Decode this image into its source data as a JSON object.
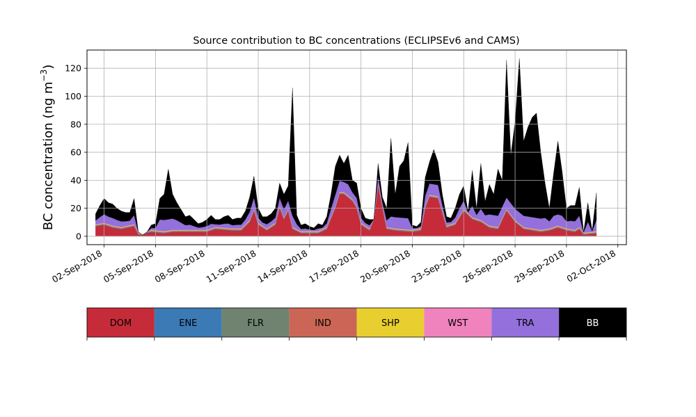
{
  "chart_data": {
    "type": "area",
    "stacked": true,
    "title": "Source contribution to BC concentrations (ECLIPSEv6 and CAMS)",
    "ylabel_main": "BC concentration (ng m",
    "ylabel_sup": "−3",
    "ylabel_close": ")",
    "xlabel": "",
    "ylim": [
      -6,
      133
    ],
    "yticks": [
      0,
      20,
      40,
      60,
      80,
      100,
      120
    ],
    "xlim": [
      "2018-09-01T00:00",
      "2018-10-02T12:00"
    ],
    "xticks": [
      "2018-09-02",
      "2018-09-05",
      "2018-09-08",
      "2018-09-11",
      "2018-09-14",
      "2018-09-17",
      "2018-09-20",
      "2018-09-23",
      "2018-09-26",
      "2018-09-29",
      "2018-10-02"
    ],
    "xtick_labels": [
      "02-Sep-2018",
      "05-Sep-2018",
      "08-Sep-2018",
      "11-Sep-2018",
      "14-Sep-2018",
      "17-Sep-2018",
      "20-Sep-2018",
      "23-Sep-2018",
      "26-Sep-2018",
      "29-Sep-2018",
      "02-Oct-2018"
    ],
    "grid": true,
    "legend_placement": "bottom-colorbar",
    "series": [
      {
        "name": "DOM",
        "color": "#c62b3a"
      },
      {
        "name": "ENE",
        "color": "#3b7ab5"
      },
      {
        "name": "FLR",
        "color": "#6f8370"
      },
      {
        "name": "IND",
        "color": "#cb6656"
      },
      {
        "name": "SHP",
        "color": "#e8cf2f"
      },
      {
        "name": "WST",
        "color": "#f082bd"
      },
      {
        "name": "TRA",
        "color": "#9370db"
      },
      {
        "name": "BB",
        "color": "#000000"
      }
    ],
    "total_points": [
      [
        "2018-09-01T12:00",
        16
      ],
      [
        "2018-09-01T18:00",
        22
      ],
      [
        "2018-09-02T00:00",
        27
      ],
      [
        "2018-09-02T06:00",
        24
      ],
      [
        "2018-09-02T12:00",
        23
      ],
      [
        "2018-09-02T18:00",
        20
      ],
      [
        "2018-09-03T00:00",
        18
      ],
      [
        "2018-09-03T06:00",
        17
      ],
      [
        "2018-09-03T12:00",
        17
      ],
      [
        "2018-09-03T18:00",
        27
      ],
      [
        "2018-09-04T00:00",
        3
      ],
      [
        "2018-09-04T06:00",
        1
      ],
      [
        "2018-09-04T12:00",
        3
      ],
      [
        "2018-09-04T18:00",
        8
      ],
      [
        "2018-09-05T00:00",
        9
      ],
      [
        "2018-09-05T06:00",
        27
      ],
      [
        "2018-09-05T12:00",
        30
      ],
      [
        "2018-09-05T18:00",
        48
      ],
      [
        "2018-09-06T00:00",
        30
      ],
      [
        "2018-09-06T06:00",
        24
      ],
      [
        "2018-09-06T12:00",
        19
      ],
      [
        "2018-09-06T18:00",
        14
      ],
      [
        "2018-09-07T00:00",
        15
      ],
      [
        "2018-09-07T06:00",
        12
      ],
      [
        "2018-09-07T12:00",
        9
      ],
      [
        "2018-09-07T18:00",
        10
      ],
      [
        "2018-09-08T00:00",
        12
      ],
      [
        "2018-09-08T06:00",
        15
      ],
      [
        "2018-09-08T12:00",
        12
      ],
      [
        "2018-09-08T18:00",
        12
      ],
      [
        "2018-09-09T00:00",
        14
      ],
      [
        "2018-09-09T06:00",
        15
      ],
      [
        "2018-09-09T12:00",
        12
      ],
      [
        "2018-09-09T18:00",
        13
      ],
      [
        "2018-09-10T00:00",
        13
      ],
      [
        "2018-09-10T06:00",
        18
      ],
      [
        "2018-09-10T12:00",
        28
      ],
      [
        "2018-09-10T18:00",
        43
      ],
      [
        "2018-09-11T00:00",
        20
      ],
      [
        "2018-09-11T06:00",
        14
      ],
      [
        "2018-09-11T12:00",
        14
      ],
      [
        "2018-09-11T18:00",
        16
      ],
      [
        "2018-09-12T00:00",
        20
      ],
      [
        "2018-09-12T06:00",
        38
      ],
      [
        "2018-09-12T12:00",
        30
      ],
      [
        "2018-09-12T18:00",
        36
      ],
      [
        "2018-09-13T00:00",
        106
      ],
      [
        "2018-09-13T06:00",
        15
      ],
      [
        "2018-09-13T12:00",
        8
      ],
      [
        "2018-09-13T18:00",
        9
      ],
      [
        "2018-09-14T00:00",
        7
      ],
      [
        "2018-09-14T06:00",
        6
      ],
      [
        "2018-09-14T12:00",
        9
      ],
      [
        "2018-09-14T18:00",
        8
      ],
      [
        "2018-09-15T00:00",
        14
      ],
      [
        "2018-09-15T06:00",
        30
      ],
      [
        "2018-09-15T12:00",
        50
      ],
      [
        "2018-09-15T18:00",
        58
      ],
      [
        "2018-09-16T00:00",
        52
      ],
      [
        "2018-09-16T06:00",
        58
      ],
      [
        "2018-09-16T12:00",
        40
      ],
      [
        "2018-09-16T18:00",
        38
      ],
      [
        "2018-09-17T00:00",
        20
      ],
      [
        "2018-09-17T06:00",
        13
      ],
      [
        "2018-09-17T12:00",
        12
      ],
      [
        "2018-09-17T18:00",
        12
      ],
      [
        "2018-09-18T00:00",
        52
      ],
      [
        "2018-09-18T06:00",
        28
      ],
      [
        "2018-09-18T12:00",
        20
      ],
      [
        "2018-09-18T18:00",
        70
      ],
      [
        "2018-09-19T00:00",
        30
      ],
      [
        "2018-09-19T06:00",
        50
      ],
      [
        "2018-09-19T12:00",
        54
      ],
      [
        "2018-09-19T18:00",
        67
      ],
      [
        "2018-09-20T00:00",
        8
      ],
      [
        "2018-09-20T06:00",
        7
      ],
      [
        "2018-09-20T12:00",
        10
      ],
      [
        "2018-09-20T18:00",
        42
      ],
      [
        "2018-09-21T00:00",
        53
      ],
      [
        "2018-09-21T06:00",
        62
      ],
      [
        "2018-09-21T12:00",
        53
      ],
      [
        "2018-09-21T18:00",
        30
      ],
      [
        "2018-09-22T00:00",
        14
      ],
      [
        "2018-09-22T06:00",
        13
      ],
      [
        "2018-09-22T12:00",
        20
      ],
      [
        "2018-09-22T18:00",
        30
      ],
      [
        "2018-09-23T00:00",
        36
      ],
      [
        "2018-09-23T06:00",
        18
      ],
      [
        "2018-09-23T12:00",
        47
      ],
      [
        "2018-09-23T18:00",
        20
      ],
      [
        "2018-09-24T00:00",
        52
      ],
      [
        "2018-09-24T06:00",
        25
      ],
      [
        "2018-09-24T12:00",
        37
      ],
      [
        "2018-09-24T18:00",
        30
      ],
      [
        "2018-09-25T00:00",
        48
      ],
      [
        "2018-09-25T06:00",
        40
      ],
      [
        "2018-09-25T12:00",
        126
      ],
      [
        "2018-09-25T18:00",
        58
      ],
      [
        "2018-09-26T00:00",
        82
      ],
      [
        "2018-09-26T06:00",
        127
      ],
      [
        "2018-09-26T12:00",
        68
      ],
      [
        "2018-09-26T18:00",
        78
      ],
      [
        "2018-09-27T00:00",
        85
      ],
      [
        "2018-09-27T06:00",
        88
      ],
      [
        "2018-09-27T12:00",
        60
      ],
      [
        "2018-09-27T18:00",
        38
      ],
      [
        "2018-09-28T00:00",
        20
      ],
      [
        "2018-09-28T06:00",
        45
      ],
      [
        "2018-09-28T12:00",
        68
      ],
      [
        "2018-09-28T18:00",
        46
      ],
      [
        "2018-09-29T00:00",
        20
      ],
      [
        "2018-09-29T06:00",
        22
      ],
      [
        "2018-09-29T12:00",
        22
      ],
      [
        "2018-09-29T18:00",
        35
      ],
      [
        "2018-09-30T00:00",
        3
      ],
      [
        "2018-09-30T06:00",
        24
      ],
      [
        "2018-09-30T12:00",
        4
      ],
      [
        "2018-09-30T18:00",
        31
      ]
    ],
    "dom_points": [
      [
        "2018-09-01T12:00",
        7
      ],
      [
        "2018-09-02T00:00",
        8
      ],
      [
        "2018-09-02T12:00",
        6
      ],
      [
        "2018-09-03T00:00",
        5
      ],
      [
        "2018-09-03T18:00",
        7
      ],
      [
        "2018-09-04T00:00",
        1
      ],
      [
        "2018-09-04T18:00",
        3
      ],
      [
        "2018-09-05T12:00",
        2
      ],
      [
        "2018-09-06T00:00",
        3
      ],
      [
        "2018-09-07T00:00",
        3
      ],
      [
        "2018-09-08T00:00",
        3
      ],
      [
        "2018-09-08T12:00",
        5
      ],
      [
        "2018-09-09T12:00",
        4
      ],
      [
        "2018-09-10T00:00",
        4
      ],
      [
        "2018-09-10T12:00",
        10
      ],
      [
        "2018-09-10T18:00",
        18
      ],
      [
        "2018-09-11T00:00",
        8
      ],
      [
        "2018-09-11T12:00",
        4
      ],
      [
        "2018-09-12T00:00",
        8
      ],
      [
        "2018-09-12T06:00",
        20
      ],
      [
        "2018-09-12T12:00",
        12
      ],
      [
        "2018-09-12T18:00",
        18
      ],
      [
        "2018-09-13T00:00",
        5
      ],
      [
        "2018-09-13T12:00",
        2
      ],
      [
        "2018-09-14T12:00",
        2
      ],
      [
        "2018-09-15T00:00",
        5
      ],
      [
        "2018-09-15T12:00",
        20
      ],
      [
        "2018-09-15T18:00",
        30
      ],
      [
        "2018-09-16T00:00",
        30
      ],
      [
        "2018-09-16T12:00",
        25
      ],
      [
        "2018-09-16T18:00",
        20
      ],
      [
        "2018-09-17T00:00",
        8
      ],
      [
        "2018-09-17T12:00",
        4
      ],
      [
        "2018-09-18T00:00",
        36
      ],
      [
        "2018-09-18T12:00",
        5
      ],
      [
        "2018-09-19T00:00",
        4
      ],
      [
        "2018-09-20T00:00",
        3
      ],
      [
        "2018-09-20T12:00",
        4
      ],
      [
        "2018-09-20T18:00",
        20
      ],
      [
        "2018-09-21T00:00",
        28
      ],
      [
        "2018-09-21T12:00",
        27
      ],
      [
        "2018-09-22T00:00",
        6
      ],
      [
        "2018-09-22T12:00",
        8
      ],
      [
        "2018-09-23T00:00",
        18
      ],
      [
        "2018-09-23T12:00",
        12
      ],
      [
        "2018-09-24T00:00",
        10
      ],
      [
        "2018-09-24T12:00",
        6
      ],
      [
        "2018-09-25T00:00",
        5
      ],
      [
        "2018-09-25T12:00",
        18
      ],
      [
        "2018-09-26T00:00",
        10
      ],
      [
        "2018-09-26T12:00",
        5
      ],
      [
        "2018-09-27T00:00",
        4
      ],
      [
        "2018-09-27T12:00",
        3
      ],
      [
        "2018-09-28T00:00",
        4
      ],
      [
        "2018-09-28T12:00",
        6
      ],
      [
        "2018-09-29T00:00",
        4
      ],
      [
        "2018-09-29T12:00",
        3
      ],
      [
        "2018-09-29T18:00",
        5
      ],
      [
        "2018-09-30T00:00",
        1
      ],
      [
        "2018-09-30T18:00",
        2
      ]
    ],
    "mid_sources_ng": 1.6,
    "tra_fraction_of_rest": 0.35,
    "tra_max_ng": 8
  }
}
